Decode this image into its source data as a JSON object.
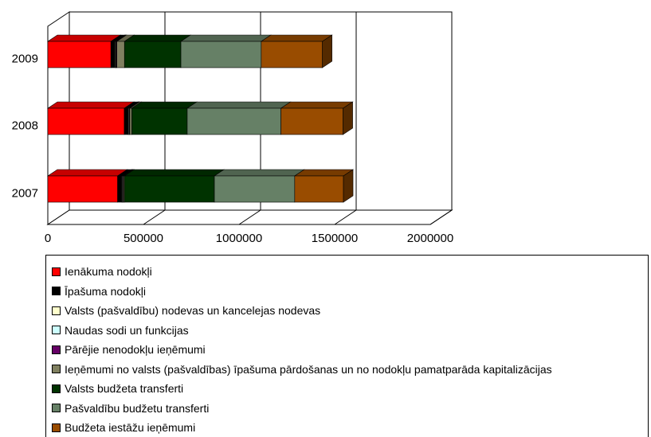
{
  "chart_data": {
    "type": "bar",
    "orientation": "horizontal",
    "stacked": true,
    "three_d": true,
    "categories": [
      "2009",
      "2008",
      "2007"
    ],
    "xlim": [
      0,
      2000000
    ],
    "xticks": [
      "0",
      "500000",
      "1000000",
      "1500000",
      "2000000"
    ],
    "grid": "vertical",
    "legend_position": "bottom",
    "series": [
      {
        "name": "Ienākuma nodokļi",
        "color": "#ff0000",
        "values": [
          330000,
          400000,
          365000
        ]
      },
      {
        "name": "Īpašuma nodokļi",
        "color": "#000000",
        "values": [
          22000,
          20000,
          22000
        ]
      },
      {
        "name": "Valsts (pašvaldību) nodevas un kancelejas nodevas",
        "color": "#ffffcc",
        "values": [
          3000,
          3000,
          3000
        ]
      },
      {
        "name": "Naudas sodi un funkcijas",
        "color": "#ccffff",
        "values": [
          3000,
          3000,
          3000
        ]
      },
      {
        "name": "Pārējie nenodokļu ieņēmumi",
        "color": "#660066",
        "values": [
          3000,
          3000,
          3000
        ]
      },
      {
        "name": "Ieņēmumi no valsts (pašvaldības) īpašuma pārdošanas un no nodokļu pamatparāda kapitalizācijas",
        "color": "#808060",
        "values": [
          40000,
          10000,
          5000
        ]
      },
      {
        "name": "Valsts budžeta transferti",
        "color": "#003300",
        "values": [
          295000,
          290000,
          470000
        ]
      },
      {
        "name": "Pašvaldību budžetu transferti",
        "color": "#668066",
        "values": [
          420000,
          490000,
          420000
        ]
      },
      {
        "name": "Budžeta iestāžu ieņēmumi",
        "color": "#994c00",
        "values": [
          320000,
          325000,
          255000
        ]
      }
    ]
  }
}
